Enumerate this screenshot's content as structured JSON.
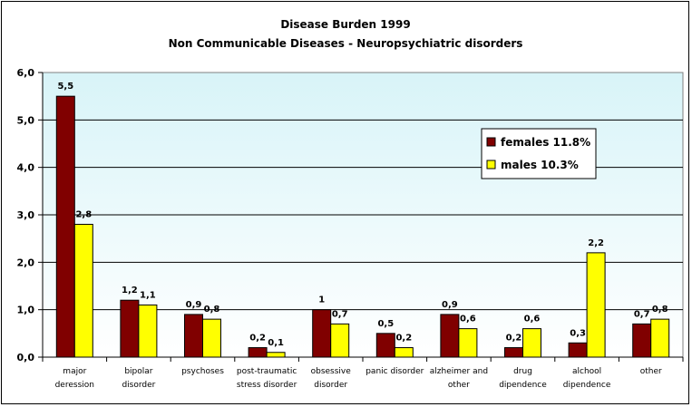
{
  "chart_data": {
    "type": "bar",
    "title": "Disease Burden  1999",
    "subtitle": "Non Communicable Diseases - Neuropsychiatric disorders",
    "categories": [
      [
        "major",
        "deression"
      ],
      [
        "bipolar",
        "disorder"
      ],
      [
        "psychoses"
      ],
      [
        "post-traumatic",
        "stress disorder"
      ],
      [
        "obsessive",
        "disorder"
      ],
      [
        "panic disorder"
      ],
      [
        "alzheimer and",
        "other"
      ],
      [
        "drug",
        "dipendence"
      ],
      [
        "alchool",
        "dipendence"
      ],
      [
        "other"
      ]
    ],
    "series": [
      {
        "name": "females 11.8%",
        "color": "#800000",
        "values": [
          5.5,
          1.2,
          0.9,
          0.2,
          1.0,
          0.5,
          0.9,
          0.2,
          0.3,
          0.7
        ],
        "labels": [
          "5,5",
          "1,2",
          "0,9",
          "0,2",
          "1",
          "0,5",
          "0,9",
          "0,2",
          "0,3",
          "0,7"
        ]
      },
      {
        "name": "males 10.3%",
        "color": "#ffff00",
        "values": [
          2.8,
          1.1,
          0.8,
          0.1,
          0.7,
          0.2,
          0.6,
          0.6,
          2.2,
          0.8
        ],
        "labels": [
          "2,8",
          "1,1",
          "0,8",
          "0,1",
          "0,7",
          "0,2",
          "0,6",
          "0,6",
          "2,2",
          "0,8"
        ]
      }
    ],
    "yticks": [
      "0,0",
      "1,0",
      "2,0",
      "3,0",
      "4,0",
      "5,0",
      "6,0"
    ],
    "ylim": [
      0,
      6
    ],
    "grid": true,
    "legend_position": "right",
    "plot_background": [
      "#d8f4f8",
      "#ffffff"
    ]
  }
}
